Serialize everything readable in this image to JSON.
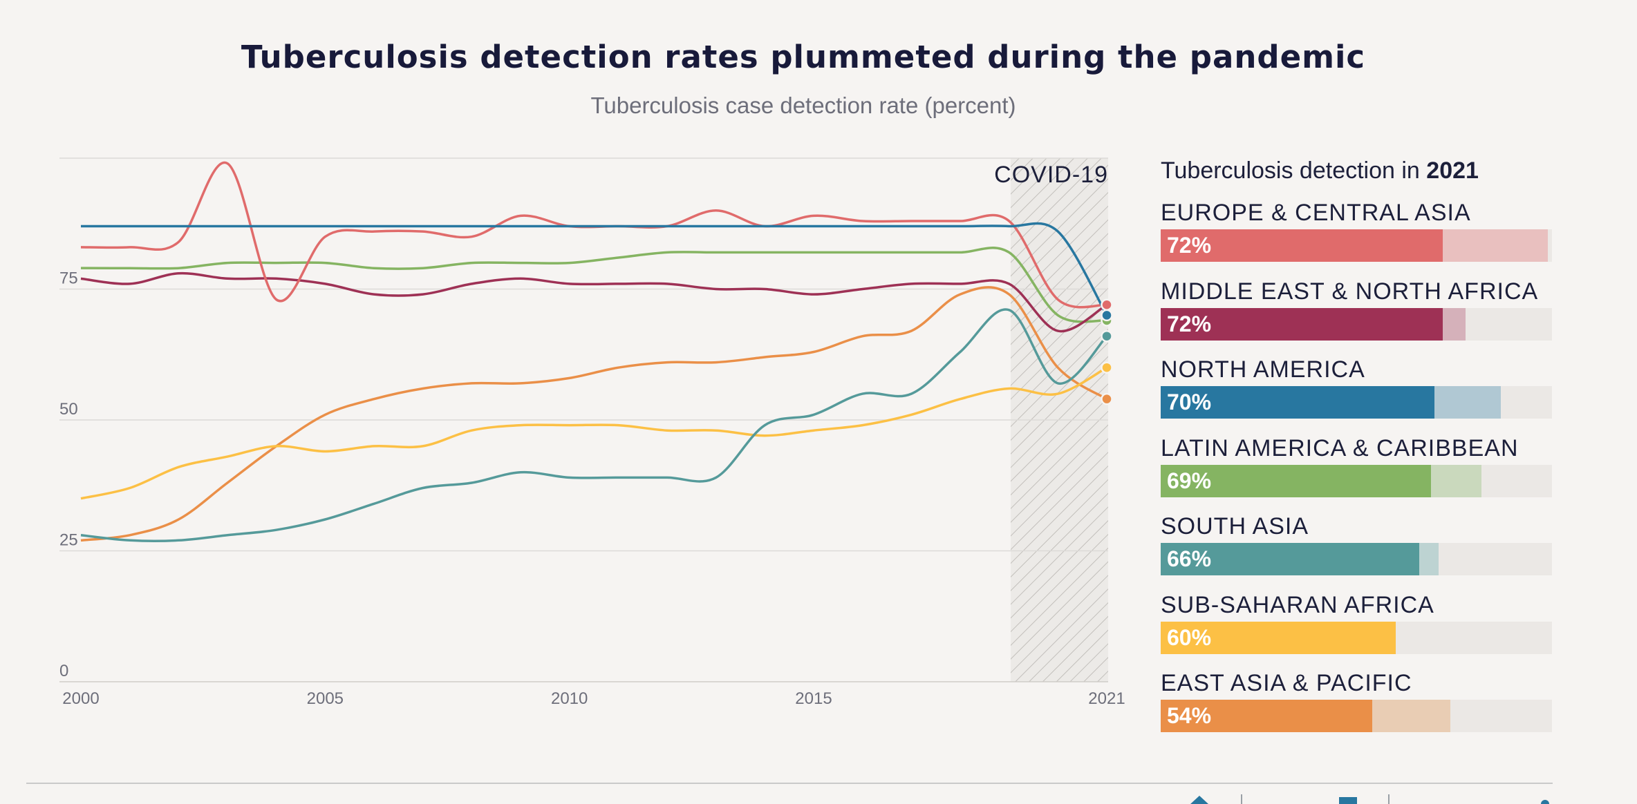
{
  "title": "Tuberculosis detection rates plummeted during the pandemic",
  "subtitle": "Tuberculosis case detection rate (percent)",
  "chart_data": {
    "type": "line",
    "x": [
      2000,
      2001,
      2002,
      2003,
      2004,
      2005,
      2006,
      2007,
      2008,
      2009,
      2010,
      2011,
      2012,
      2013,
      2014,
      2015,
      2016,
      2017,
      2018,
      2019,
      2020,
      2021
    ],
    "xticks": [
      "2000",
      "2005",
      "2010",
      "2015",
      "2021"
    ],
    "yticks": [
      "0",
      "25",
      "50",
      "75"
    ],
    "ylim": [
      0,
      100
    ],
    "annotation": "COVID-19",
    "series": [
      {
        "name": "EUROPE & CENTRAL ASIA",
        "color": "#e06b6b",
        "values": [
          83,
          83,
          84,
          99,
          73,
          85,
          86,
          86,
          85,
          89,
          87,
          87,
          87,
          90,
          87,
          89,
          88,
          88,
          88,
          88,
          73,
          72
        ]
      },
      {
        "name": "MIDDLE EAST & NORTH AFRICA",
        "color": "#9e3155",
        "values": [
          77,
          76,
          78,
          77,
          77,
          76,
          74,
          74,
          76,
          77,
          76,
          76,
          76,
          75,
          75,
          74,
          75,
          76,
          76,
          76,
          67,
          72
        ]
      },
      {
        "name": "NORTH AMERICA",
        "color": "#2877a0",
        "values": [
          87,
          87,
          87,
          87,
          87,
          87,
          87,
          87,
          87,
          87,
          87,
          87,
          87,
          87,
          87,
          87,
          87,
          87,
          87,
          87,
          86,
          70
        ]
      },
      {
        "name": "LATIN AMERICA & CARIBBEAN",
        "color": "#85b462",
        "values": [
          79,
          79,
          79,
          80,
          80,
          80,
          79,
          79,
          80,
          80,
          80,
          81,
          82,
          82,
          82,
          82,
          82,
          82,
          82,
          82,
          70,
          69
        ]
      },
      {
        "name": "SOUTH ASIA",
        "color": "#559a9a",
        "values": [
          28,
          27,
          27,
          28,
          29,
          31,
          34,
          37,
          38,
          40,
          39,
          39,
          39,
          39,
          49,
          51,
          55,
          55,
          63,
          71,
          57,
          66
        ]
      },
      {
        "name": "SUB-SAHARAN AFRICA",
        "color": "#fcc045",
        "values": [
          35,
          37,
          41,
          43,
          45,
          44,
          45,
          45,
          48,
          49,
          49,
          49,
          48,
          48,
          47,
          48,
          49,
          51,
          54,
          56,
          55,
          60
        ]
      },
      {
        "name": "EAST ASIA & PACIFIC",
        "color": "#ea8f48",
        "values": [
          27,
          28,
          31,
          38,
          45,
          51,
          54,
          56,
          57,
          57,
          58,
          60,
          61,
          61,
          62,
          63,
          66,
          67,
          74,
          74,
          60,
          54
        ]
      }
    ]
  },
  "legend": {
    "title_prefix": "Tuberculosis detection in ",
    "title_year": "2021",
    "regions": [
      {
        "name": "EUROPE & CENTRAL ASIA",
        "label": "72%",
        "value": 72,
        "previous": 99,
        "color": "#e06b6b",
        "ghost_color": "#e9c0bf"
      },
      {
        "name": "MIDDLE EAST & NORTH AFRICA",
        "label": "72%",
        "value": 72,
        "previous": 78,
        "color": "#9e3155",
        "ghost_color": "#d5b1ba"
      },
      {
        "name": "NORTH AMERICA",
        "label": "70%",
        "value": 70,
        "previous": 87,
        "color": "#2877a0",
        "ghost_color": "#b0c8d3"
      },
      {
        "name": "LATIN AMERICA & CARIBBEAN",
        "label": "69%",
        "value": 69,
        "previous": 82,
        "color": "#85b462",
        "ghost_color": "#cad9bd"
      },
      {
        "name": "SOUTH ASIA",
        "label": "66%",
        "value": 66,
        "previous": 71,
        "color": "#559a9a",
        "ghost_color": "#bdd3d2"
      },
      {
        "name": "SUB-SAHARAN AFRICA",
        "label": "60%",
        "value": 60,
        "previous": 60,
        "color": "#fcc045",
        "ghost_color": "#f1dcb0"
      },
      {
        "name": "EAST ASIA & PACIFIC",
        "label": "54%",
        "value": 54,
        "previous": 74,
        "color": "#ea8f48",
        "ghost_color": "#e9cdb4"
      }
    ]
  }
}
